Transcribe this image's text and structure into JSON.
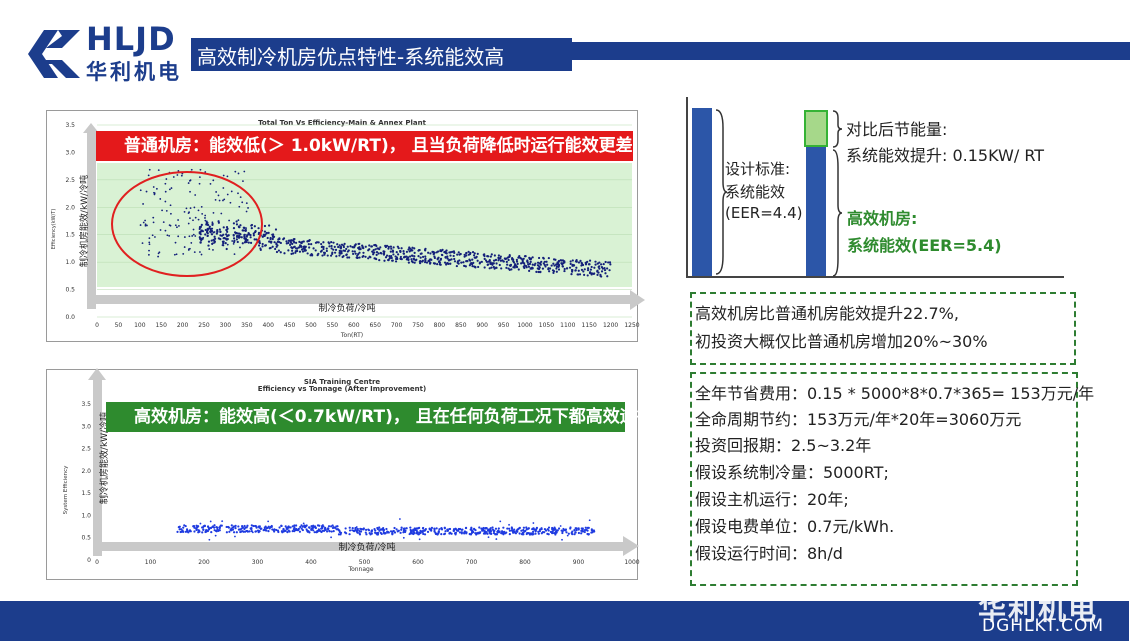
{
  "header": {
    "logo_en": "HLJD",
    "logo_cn": "华利机电",
    "title": "高效制冷机房优点特性-系统能效高"
  },
  "chart1": {
    "title": "Total Ton Vs Efficiency-Main & Annex Plant",
    "banner": "普通机房：能效低(＞ 1.0kW/RT)， 且当负荷降低时运行能效更差",
    "ylabel_en": "Efficiency(kW/T)",
    "ylabel_cn": "制冷机房能效/kW/冷吨",
    "xlabel_cn": "制冷负荷/冷吨",
    "xlabel_en": "Ton(RT)",
    "y_ticks": [
      "0.0",
      "0.5",
      "1.0",
      "1.5",
      "2.0",
      "2.5",
      "3.0",
      "3.5"
    ],
    "x_ticks": [
      "0",
      "50",
      "100",
      "150",
      "200",
      "250",
      "300",
      "350",
      "400",
      "450",
      "500",
      "550",
      "600",
      "650",
      "700",
      "750",
      "800",
      "850",
      "900",
      "950",
      "1000",
      "1050",
      "1100",
      "1150",
      "1200",
      "1250"
    ],
    "colors": {
      "banner": "#e4191b",
      "band": "#d9f2d4",
      "points": "#14207a",
      "circle": "#e02020"
    }
  },
  "chart2": {
    "title_line1": "SIA Training Centre",
    "title_line2": "Efficiency vs Tonnage (After Improvement)",
    "banner": "高效机房：能效高(＜0.7kW/RT)， 且在任何负荷工况下都高效运行",
    "ylabel_en": "System Efficiency",
    "ylabel_cn": "制冷机房能效/kW/冷吨",
    "xlabel_cn": "制冷负荷/冷吨",
    "xlabel_en": "Tonnage",
    "y_ticks": [
      "0",
      "0.5",
      "1.0",
      "1.5",
      "2.0",
      "2.5",
      "3.0",
      "3.5"
    ],
    "x_ticks": [
      "0",
      "100",
      "200",
      "300",
      "400",
      "500",
      "600",
      "700",
      "800",
      "900",
      "1000"
    ],
    "colors": {
      "banner": "#2e8b2e",
      "points": "#1f3be0"
    }
  },
  "bar_compare": {
    "left_label_1": "设计标准:",
    "left_label_2": "系统能效",
    "left_label_3": "(EER=4.4)",
    "top_label_1": "对比后节能量:",
    "top_label_2": "系统能效提升: 0.15KW/ RT",
    "green_label_1": "高效机房:",
    "green_label_2": "系统能效(EER=5.4)",
    "colors": {
      "bar": "#2c56a8",
      "top": "#a6d88a",
      "green_text": "#2e8b2e"
    }
  },
  "box1": {
    "line1": "高效机房比普通机房能效提升22.7%,",
    "line2": "初投资大概仅比普通机房增加20%~30%"
  },
  "box2": {
    "lines": [
      "全年节省费用：0.15 * 5000*8*0.7*365= 153万元/年",
      "全命周期节约：153万元/年*20年=3060万元",
      "投资回报期：2.5~3.2年",
      "假设系统制冷量：5000RT;",
      "假设主机运行：20年;",
      "假设电费单位：0.7元/kWh.",
      "假设运行时间：8h/d"
    ]
  },
  "footer": {
    "brand": "华利机电",
    "url": "DGHLKT.COM"
  }
}
